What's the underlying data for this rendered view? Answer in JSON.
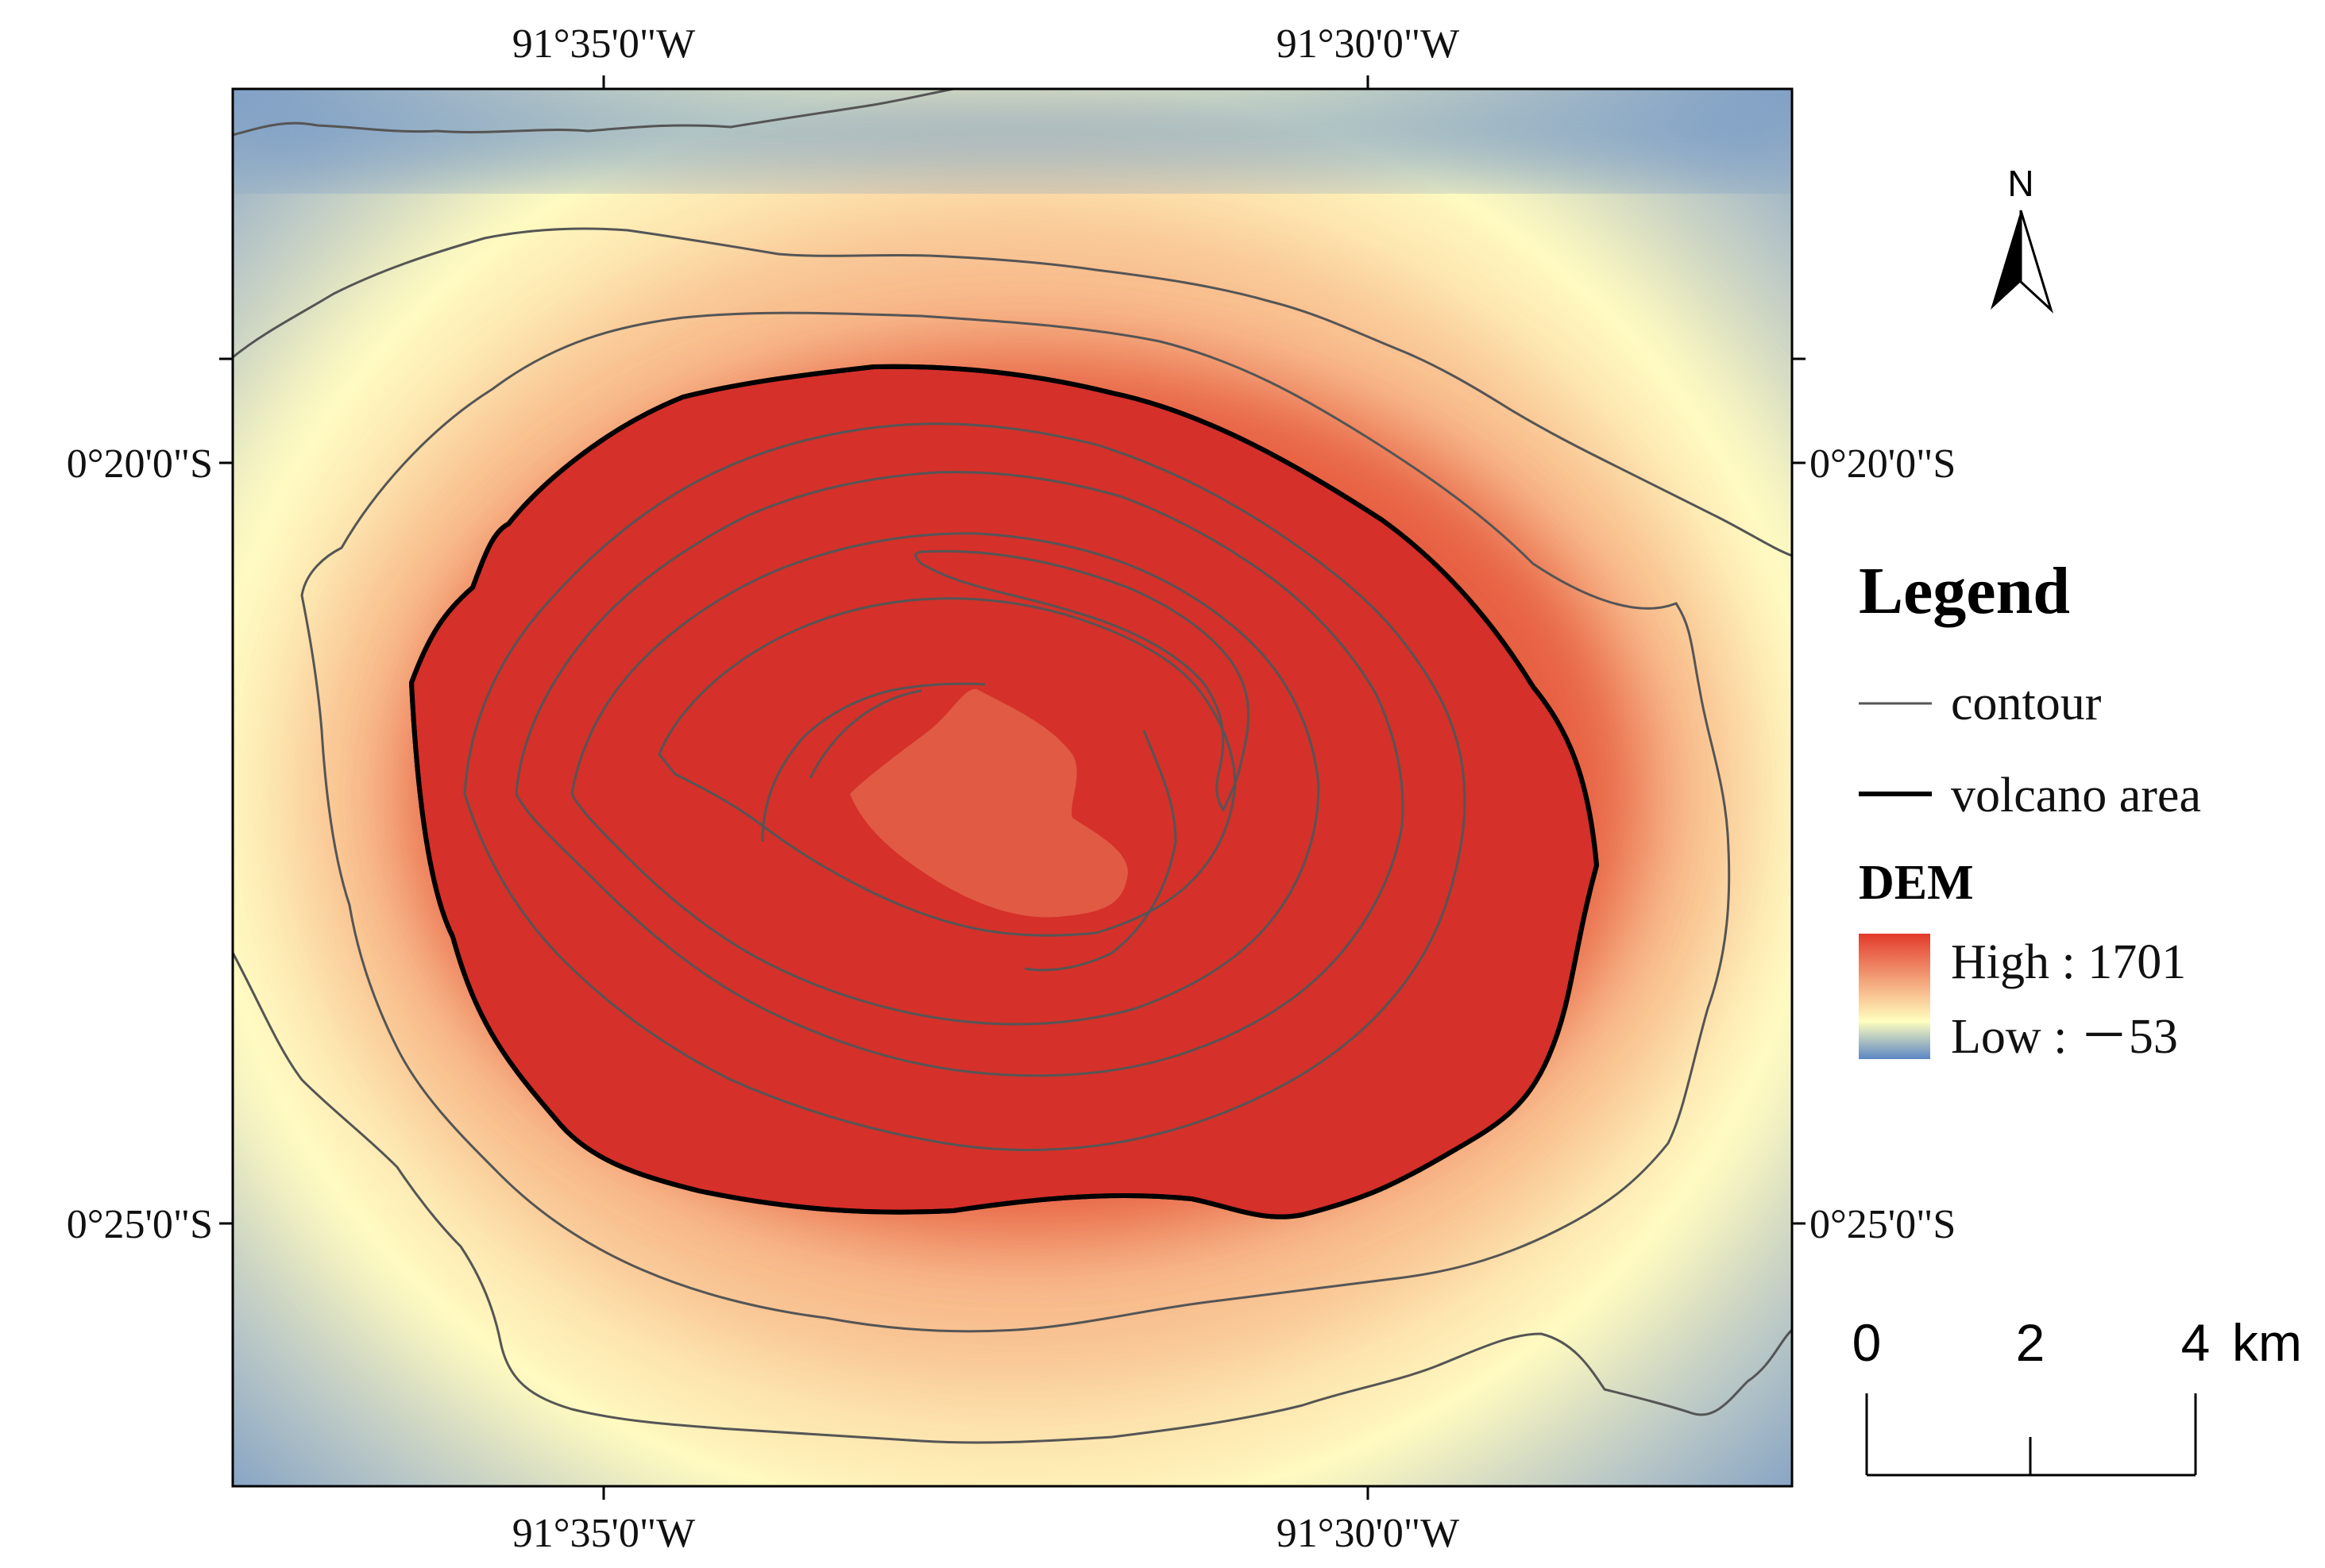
{
  "map": {
    "graticule": {
      "top_lon_labels": [
        "91°35'0\"W",
        "91°30'0\"W"
      ],
      "bottom_lon_labels": [
        "91°35'0\"W",
        "91°30'0\"W"
      ],
      "left_lat_labels": [
        "0°20'0\"S",
        "0°25'0\"S"
      ],
      "right_lat_labels": [
        "0°20'0\"S",
        "0°25'0\"S"
      ]
    },
    "colors": {
      "high": "#d73027",
      "mid": "#fffebe",
      "low": "#5b86c4",
      "contour": "#555555",
      "volcano_area": "#000000",
      "crater": "#e05a44"
    }
  },
  "legend": {
    "title": "Legend",
    "contour_label": "contour",
    "volcano_label": "volcano area",
    "dem_title": "DEM",
    "high_label": "High : 1701",
    "low_label": "Low : －53"
  },
  "north_arrow": {
    "label": "N"
  },
  "scale_bar": {
    "ticks": [
      "0",
      "2",
      "4"
    ],
    "unit": "km"
  }
}
